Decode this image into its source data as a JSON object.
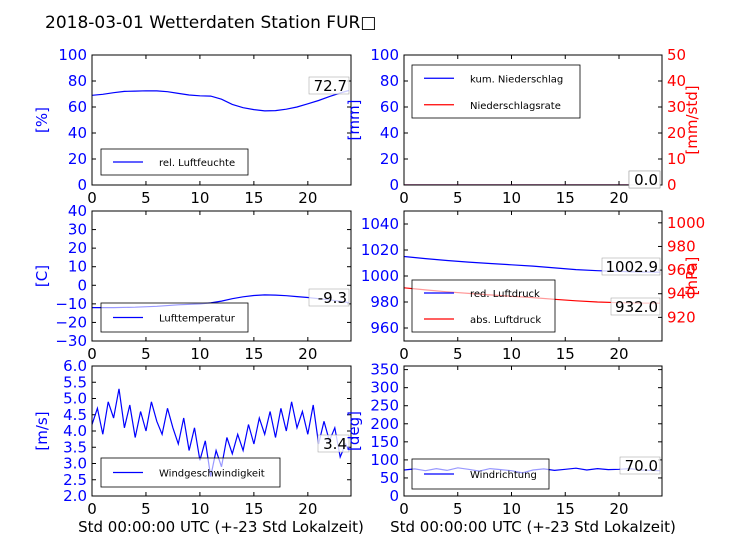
{
  "title": "2018-03-01 Wetterdaten Station FUR□",
  "colors": {
    "primary": "#0000ff",
    "secondary": "#ff0000",
    "axis": "#000000",
    "frame": "#000000",
    "background": "#ffffff"
  },
  "chart_data": [
    {
      "id": "humidity",
      "type": "line",
      "xlim": [
        0,
        24
      ],
      "xticks": [
        "0",
        "5",
        "10",
        "15",
        "20"
      ],
      "ylim": [
        0,
        100
      ],
      "yticks": [
        "0",
        "20",
        "40",
        "60",
        "80",
        "100"
      ],
      "ylabel": "[%]",
      "series": [
        {
          "name": "rel. Luftfeuchte",
          "color": "#0000ff",
          "x": [
            0,
            1,
            2,
            3,
            4,
            5,
            6,
            7,
            8,
            9,
            10,
            11,
            12,
            13,
            14,
            15,
            16,
            17,
            18,
            19,
            20,
            21,
            22,
            23,
            23.8
          ],
          "y": [
            69,
            69.8,
            71,
            72,
            72.2,
            72.5,
            72.4,
            71.8,
            70.5,
            69.2,
            68.6,
            68.4,
            66,
            62,
            59.5,
            58,
            57,
            57.2,
            58.3,
            60,
            62.5,
            65,
            68,
            70.8,
            72.7
          ]
        }
      ],
      "last_value": "72.7"
    },
    {
      "id": "precipitation",
      "type": "line",
      "xlim": [
        0,
        24
      ],
      "xticks": [
        "0",
        "5",
        "10",
        "15",
        "20"
      ],
      "ylim": [
        0,
        100
      ],
      "yticks": [
        "0",
        "20",
        "40",
        "60",
        "80",
        "100"
      ],
      "ylabel": "[mm]",
      "y2lim": [
        0,
        50
      ],
      "y2ticks": [
        "0",
        "10",
        "20",
        "30",
        "40",
        "50"
      ],
      "y2label": "[mm/std]",
      "series": [
        {
          "name": "kum. Niederschlag",
          "color": "#0000ff",
          "x": [
            0,
            23.8
          ],
          "y": [
            0,
            0
          ]
        },
        {
          "name": "Niederschlagsrate",
          "color": "#ff0000",
          "x": [
            0,
            23.8
          ],
          "y": [
            0,
            0
          ],
          "axis": "right"
        }
      ],
      "last_value": "0.0",
      "last_value_2": "0.0"
    },
    {
      "id": "temperature",
      "type": "line",
      "xlim": [
        0,
        24
      ],
      "xticks": [
        "0",
        "5",
        "10",
        "15",
        "20"
      ],
      "ylim": [
        -30,
        40
      ],
      "yticks": [
        "−30",
        "−20",
        "−10",
        "0",
        "10",
        "20",
        "30",
        "40"
      ],
      "ylabel": "[C]",
      "series": [
        {
          "name": "Lufttemperatur",
          "color": "#0000ff",
          "x": [
            0,
            2,
            4,
            6,
            8,
            10,
            11,
            12,
            13,
            14,
            15,
            16,
            17,
            18,
            19,
            20,
            21,
            22,
            23,
            23.8
          ],
          "y": [
            -12,
            -12,
            -11.8,
            -11.3,
            -10.5,
            -10,
            -9.5,
            -8.5,
            -7.2,
            -6.2,
            -5.5,
            -5.2,
            -5.3,
            -5.6,
            -6.1,
            -6.6,
            -7.2,
            -7.8,
            -8.6,
            -9.3
          ]
        }
      ],
      "last_value": "-9.3"
    },
    {
      "id": "pressure",
      "type": "line",
      "xlim": [
        0,
        24
      ],
      "xticks": [
        "0",
        "5",
        "10",
        "15",
        "20"
      ],
      "ylim": [
        950,
        1050
      ],
      "yticks": [
        "960",
        "980",
        "1000",
        "1020",
        "1040"
      ],
      "ylabel": "",
      "y2lim": [
        900,
        1010
      ],
      "y2ticks": [
        "920",
        "940",
        "960",
        "980",
        "1000"
      ],
      "y2label": "[hPa]",
      "series": [
        {
          "name": "red. Luftdruck",
          "color": "#0000ff",
          "x": [
            0,
            2,
            4,
            6,
            8,
            10,
            12,
            14,
            16,
            18,
            20,
            22,
            23.8
          ],
          "y": [
            1015,
            1013.4,
            1011.9,
            1010.7,
            1009.6,
            1008.6,
            1007.6,
            1006.2,
            1004.9,
            1004.1,
            1003.5,
            1003.1,
            1002.9
          ]
        },
        {
          "name": "abs. Luftdruck",
          "color": "#ff0000",
          "axis": "right",
          "x": [
            0,
            2,
            4,
            6,
            8,
            10,
            12,
            14,
            16,
            18,
            20,
            22,
            23.8
          ],
          "y": [
            945,
            943.2,
            941.6,
            940.3,
            939.0,
            937.8,
            936.7,
            935.3,
            934.0,
            933.0,
            932.4,
            932.1,
            932.0
          ]
        }
      ],
      "last_value": "1002.9",
      "last_value_2": "932.0"
    },
    {
      "id": "windspeed",
      "type": "line",
      "xlim": [
        0,
        24
      ],
      "xticks": [
        "0",
        "5",
        "10",
        "15",
        "20"
      ],
      "ylim": [
        2.0,
        6.0
      ],
      "yticks": [
        "2.0",
        "2.5",
        "3.0",
        "3.5",
        "4.0",
        "4.5",
        "5.0",
        "5.5",
        "6.0"
      ],
      "ylabel": "[m/s]",
      "series": [
        {
          "name": "Windgeschwindigkeit",
          "color": "#0000ff",
          "x": [
            0,
            0.5,
            1,
            1.5,
            2,
            2.5,
            3,
            3.5,
            4,
            4.5,
            5,
            5.5,
            6,
            6.5,
            7,
            7.5,
            8,
            8.5,
            9,
            9.5,
            10,
            10.5,
            11,
            11.5,
            12,
            12.5,
            13,
            13.5,
            14,
            14.5,
            15,
            15.5,
            16,
            16.5,
            17,
            17.5,
            18,
            18.5,
            19,
            19.5,
            20,
            20.5,
            21,
            21.5,
            22,
            22.5,
            23,
            23.5,
            23.8
          ],
          "y": [
            4.2,
            4.7,
            3.9,
            4.9,
            4.4,
            5.3,
            4.1,
            4.8,
            3.8,
            4.6,
            4.0,
            4.9,
            4.3,
            3.9,
            4.7,
            4.1,
            3.6,
            4.4,
            3.4,
            4.1,
            3.1,
            3.7,
            2.6,
            3.4,
            2.9,
            3.8,
            3.3,
            3.9,
            3.4,
            4.2,
            3.6,
            4.4,
            3.9,
            4.6,
            3.8,
            4.7,
            4.0,
            4.9,
            4.1,
            4.6,
            3.9,
            4.8,
            3.6,
            4.3,
            3.7,
            4.1,
            3.2,
            3.6,
            3.4
          ]
        }
      ],
      "last_value": "3.4"
    },
    {
      "id": "winddirection",
      "type": "line",
      "xlim": [
        0,
        24
      ],
      "xticks": [
        "0",
        "5",
        "10",
        "15",
        "20"
      ],
      "ylim": [
        0,
        360
      ],
      "yticks": [
        "0",
        "50",
        "100",
        "150",
        "200",
        "250",
        "300",
        "350"
      ],
      "ylabel": "[deg]",
      "series": [
        {
          "name": "Windrichtung",
          "color": "#0000ff",
          "x": [
            0,
            1,
            2,
            3,
            4,
            5,
            6,
            7,
            8,
            9,
            10,
            11,
            12,
            13,
            14,
            15,
            16,
            17,
            18,
            19,
            20,
            21,
            22,
            23,
            23.8
          ],
          "y": [
            72,
            75,
            70,
            76,
            71,
            78,
            74,
            69,
            76,
            73,
            70,
            64,
            72,
            75,
            71,
            74,
            77,
            72,
            76,
            73,
            74,
            76,
            72,
            71,
            70
          ]
        }
      ],
      "last_value": "70.0"
    }
  ],
  "xlabel": "Std 00:00:00 UTC (+-23 Std Lokalzeit)"
}
